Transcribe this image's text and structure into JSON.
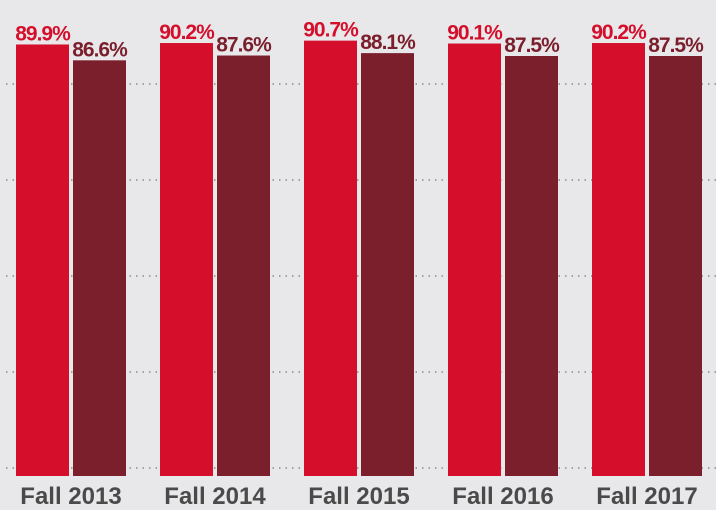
{
  "chart_data": {
    "type": "bar",
    "categories": [
      "Fall 2013",
      "Fall 2014",
      "Fall 2015",
      "Fall 2016",
      "Fall 2017"
    ],
    "series": [
      {
        "color": "#d50f2b",
        "values": [
          89.9,
          90.2,
          90.7,
          90.1,
          90.2
        ],
        "value_labels": [
          "89.9%",
          "90.2%",
          "90.7%",
          "90.1%",
          "90.2%"
        ]
      },
      {
        "color": "#7b1f2d",
        "values": [
          86.6,
          87.6,
          88.1,
          87.5,
          87.5
        ],
        "value_labels": [
          "86.6%",
          "87.6%",
          "88.1%",
          "87.5%",
          "87.5%"
        ]
      }
    ],
    "ylim": [
      0,
      100
    ],
    "yticks": [
      0,
      20,
      40,
      60,
      80
    ],
    "grid": true
  }
}
